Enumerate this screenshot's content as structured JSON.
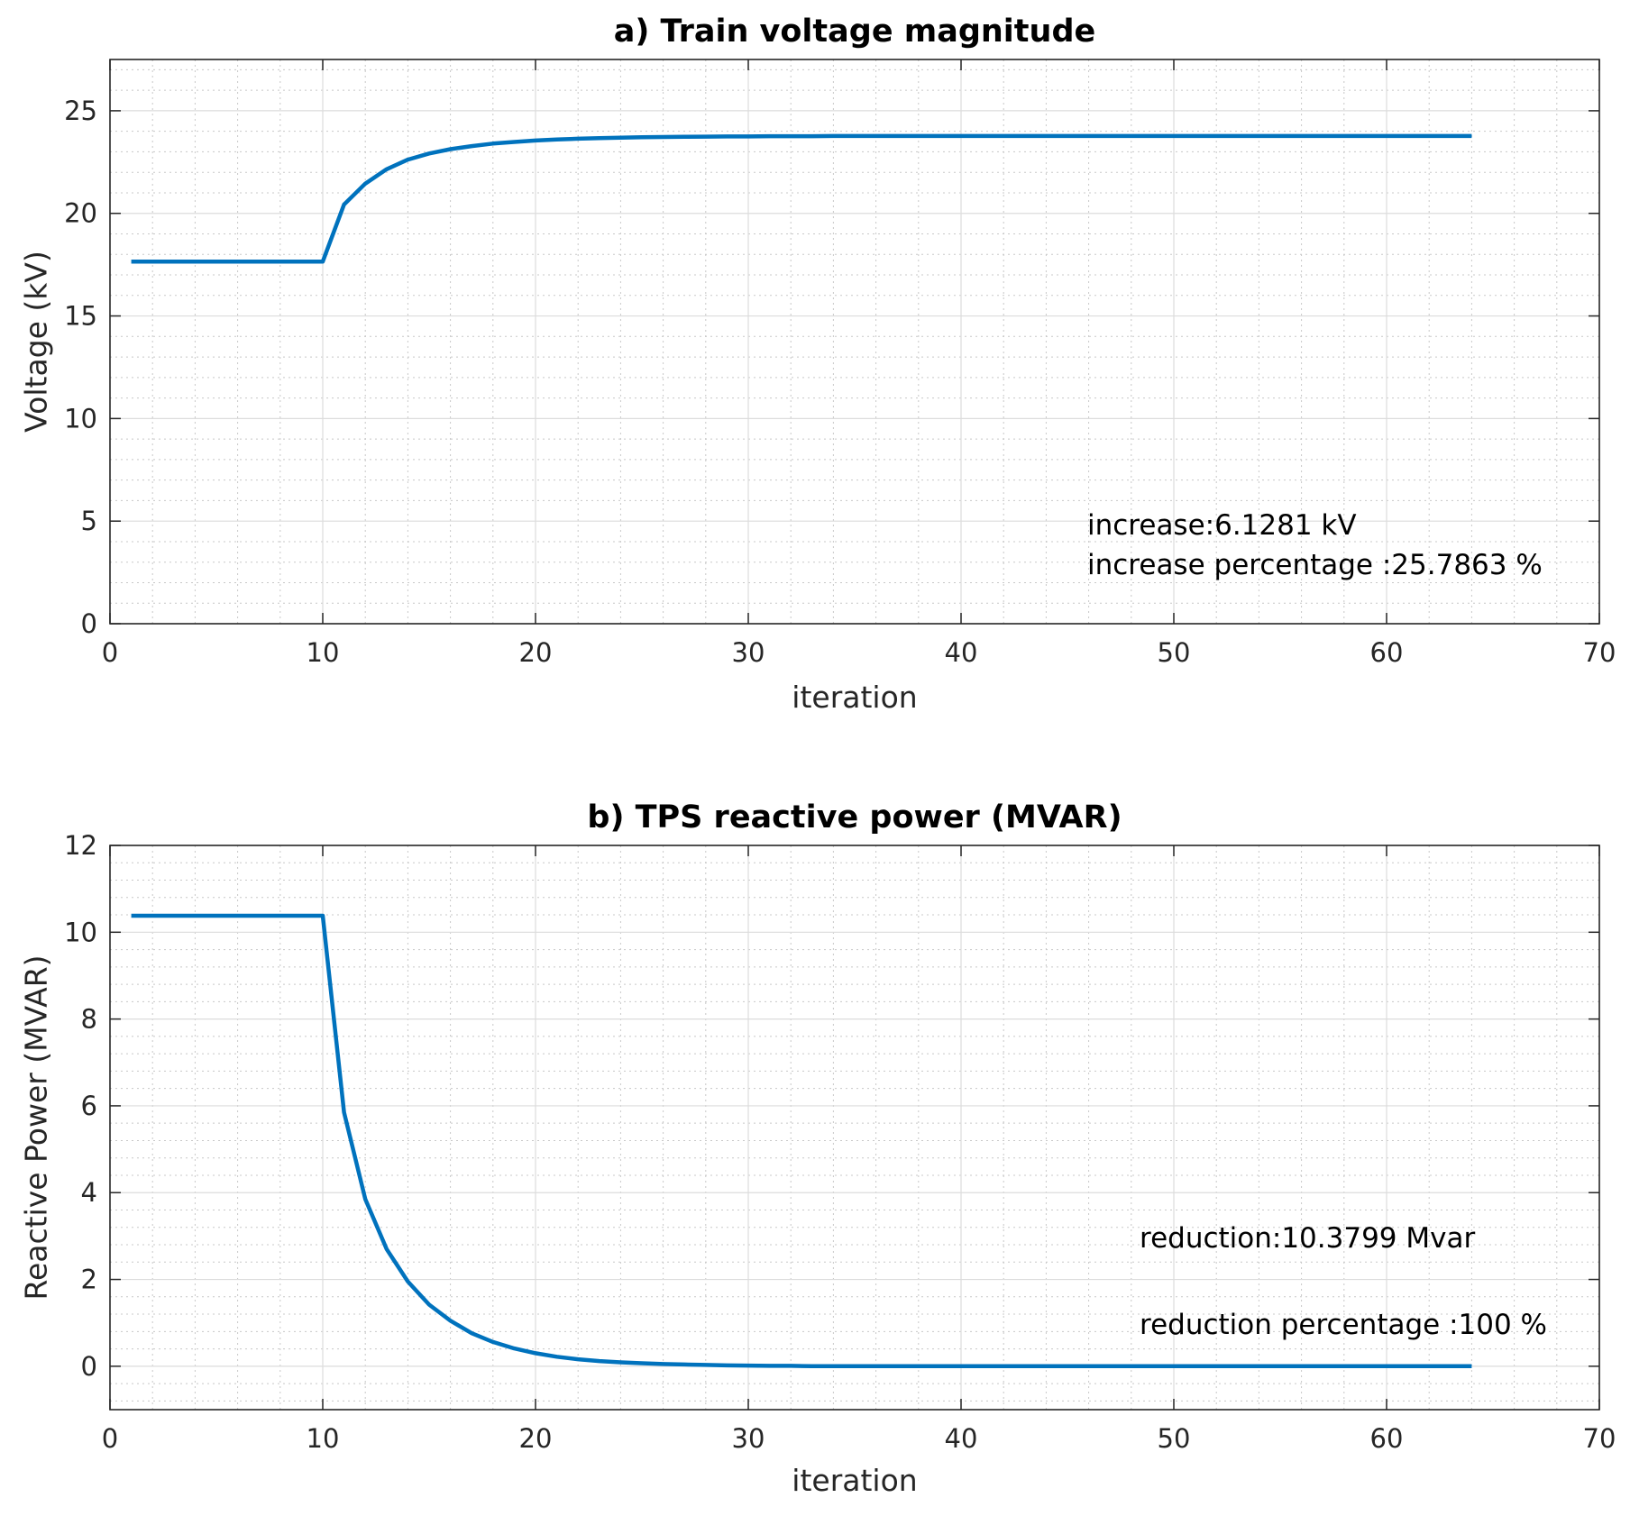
{
  "chart_data": [
    {
      "type": "line",
      "title": "a) Train voltage magnitude",
      "xlabel": "iteration",
      "ylabel": "Voltage (kV)",
      "xlim": [
        0,
        70
      ],
      "ylim": [
        0,
        27.5
      ],
      "xticks": [
        0,
        10,
        20,
        30,
        40,
        50,
        60,
        70
      ],
      "yticks": [
        0,
        5,
        10,
        15,
        20,
        25
      ],
      "grid": true,
      "minor_grid": true,
      "color": "#0072BD",
      "series": [
        {
          "x": [
            1,
            2,
            3,
            4,
            5,
            6,
            7,
            8,
            9,
            10,
            11,
            12,
            13,
            14,
            15,
            16,
            17,
            18,
            19,
            20,
            21,
            22,
            23,
            24,
            25,
            26,
            27,
            28,
            29,
            30,
            31,
            32,
            33,
            34,
            35,
            36,
            37,
            38,
            39,
            40,
            41,
            42,
            43,
            44,
            45,
            46,
            47,
            48,
            49,
            50,
            51,
            52,
            53,
            54,
            55,
            56,
            57,
            58,
            59,
            60,
            61,
            62,
            63,
            64
          ],
          "values": [
            17.65,
            17.65,
            17.65,
            17.65,
            17.65,
            17.65,
            17.65,
            17.65,
            17.65,
            17.65,
            20.43,
            21.45,
            22.15,
            22.62,
            22.92,
            23.13,
            23.28,
            23.4,
            23.48,
            23.55,
            23.6,
            23.64,
            23.67,
            23.69,
            23.71,
            23.72,
            23.73,
            23.74,
            23.75,
            23.75,
            23.76,
            23.76,
            23.76,
            23.77,
            23.77,
            23.77,
            23.77,
            23.77,
            23.77,
            23.77,
            23.77,
            23.77,
            23.77,
            23.77,
            23.77,
            23.77,
            23.77,
            23.77,
            23.77,
            23.77,
            23.77,
            23.77,
            23.77,
            23.77,
            23.77,
            23.77,
            23.77,
            23.77,
            23.77,
            23.77,
            23.77,
            23.77,
            23.77,
            23.77
          ]
        }
      ],
      "annotations": [
        "increase:6.1281 kV",
        "increase percentage :25.7863 %"
      ]
    },
    {
      "type": "line",
      "title": "b) TPS reactive power (MVAR)",
      "xlabel": "iteration",
      "ylabel": "Reactive Power (MVAR)",
      "xlim": [
        0,
        70
      ],
      "ylim": [
        -1,
        12
      ],
      "xticks": [
        0,
        10,
        20,
        30,
        40,
        50,
        60,
        70
      ],
      "yticks": [
        0,
        2,
        4,
        6,
        8,
        10,
        12
      ],
      "grid": true,
      "minor_grid": true,
      "color": "#0072BD",
      "series": [
        {
          "x": [
            1,
            2,
            3,
            4,
            5,
            6,
            7,
            8,
            9,
            10,
            11,
            12,
            13,
            14,
            15,
            16,
            17,
            18,
            19,
            20,
            21,
            22,
            23,
            24,
            25,
            26,
            27,
            28,
            29,
            30,
            31,
            32,
            33,
            34,
            35,
            36,
            37,
            38,
            39,
            40,
            41,
            42,
            43,
            44,
            45,
            46,
            47,
            48,
            49,
            50,
            51,
            52,
            53,
            54,
            55,
            56,
            57,
            58,
            59,
            60,
            61,
            62,
            63,
            64
          ],
          "values": [
            10.38,
            10.38,
            10.38,
            10.38,
            10.38,
            10.38,
            10.38,
            10.38,
            10.38,
            10.38,
            5.85,
            3.85,
            2.7,
            1.95,
            1.42,
            1.05,
            0.76,
            0.56,
            0.41,
            0.3,
            0.22,
            0.16,
            0.12,
            0.09,
            0.07,
            0.05,
            0.04,
            0.03,
            0.02,
            0.015,
            0.01,
            0.01,
            0,
            0,
            0,
            0,
            0,
            0,
            0,
            0,
            0,
            0,
            0,
            0,
            0,
            0,
            0,
            0,
            0,
            0,
            0,
            0,
            0,
            0,
            0,
            0,
            0,
            0,
            0,
            0,
            0,
            0,
            0,
            0
          ]
        }
      ],
      "annotations": [
        "reduction:10.3799 Mvar",
        "reduction percentage :100 %"
      ]
    }
  ]
}
